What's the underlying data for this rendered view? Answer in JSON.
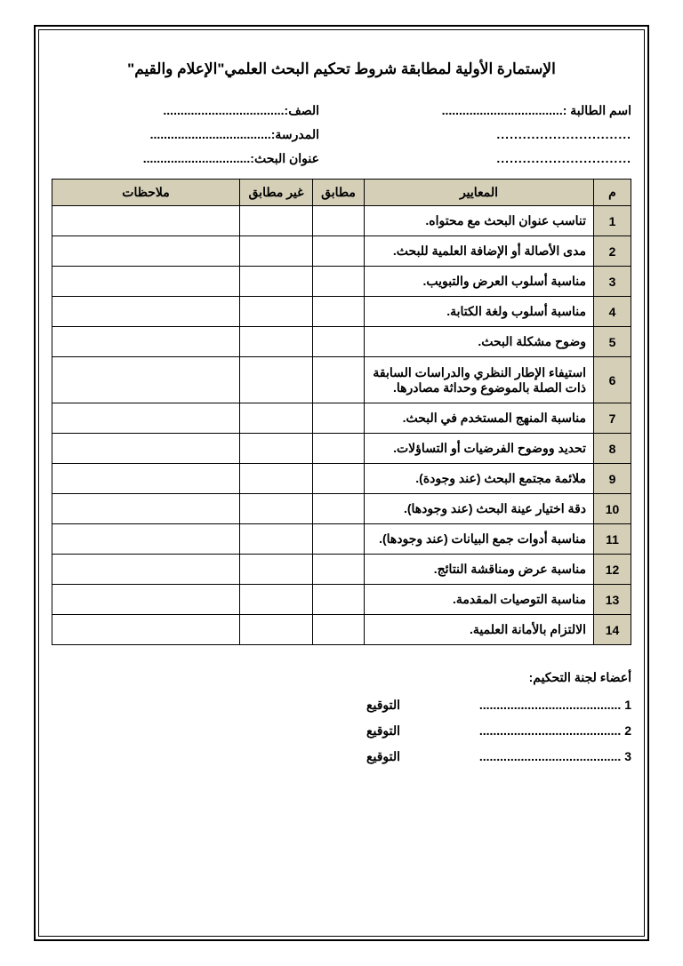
{
  "title": "الإستمارة الأولية لمطابقة شروط تحكيم البحث العلمي\"الإعلام والقيم\"",
  "fields": {
    "student_name_label": "اسم الطالبة :",
    "class_label": "الصف:",
    "school_label": "المدرسة:",
    "research_title_label": "عنوان البحث:",
    "dots_long": "...................................",
    "dots_med": "..............................."
  },
  "table": {
    "headers": {
      "num": "م",
      "criteria": "المعايير",
      "match": "مطابق",
      "nomatch": "غير مطابق",
      "notes": "ملاحظات"
    },
    "header_bg": "#d5cfb8",
    "rows": [
      {
        "num": "1",
        "criteria": "تناسب عنوان البحث مع محتواه."
      },
      {
        "num": "2",
        "criteria": "مدى الأصالة أو الإضافة العلمية للبحث."
      },
      {
        "num": "3",
        "criteria": "مناسبة أسلوب العرض والتبويب."
      },
      {
        "num": "4",
        "criteria": "مناسبة أسلوب ولغة الكتابة."
      },
      {
        "num": "5",
        "criteria": "وضوح مشكلة البحث."
      },
      {
        "num": "6",
        "criteria": "استيفاء الإطار النظري والدراسات السابقة ذات الصلة بالموضوع وحداثة مصادرها.",
        "tall": true
      },
      {
        "num": "7",
        "criteria": "مناسبة المنهج المستخدم في البحث."
      },
      {
        "num": "8",
        "criteria": "تحديد ووضوح الفرضيات أو التساؤلات."
      },
      {
        "num": "9",
        "criteria": "ملائمة مجتمع البحث (عند وجودة)."
      },
      {
        "num": "10",
        "criteria": "دقة اختيار عينة البحث (عند وجودها)."
      },
      {
        "num": "11",
        "criteria": "مناسبة أدوات جمع البيانات (عند وجودها)."
      },
      {
        "num": "12",
        "criteria": "مناسبة عرض ومناقشة النتائج."
      },
      {
        "num": "13",
        "criteria": "مناسبة التوصيات المقدمة."
      },
      {
        "num": "14",
        "criteria": "الالتزام بالأمانة العلمية."
      }
    ]
  },
  "committee": {
    "title": "أعضاء لجنة التحكيم:",
    "signature_label": "التوقيع",
    "items": [
      {
        "num": "1",
        "dots": "........................................"
      },
      {
        "num": "2",
        "dots": "........................................"
      },
      {
        "num": "3",
        "dots": "........................................"
      }
    ]
  }
}
